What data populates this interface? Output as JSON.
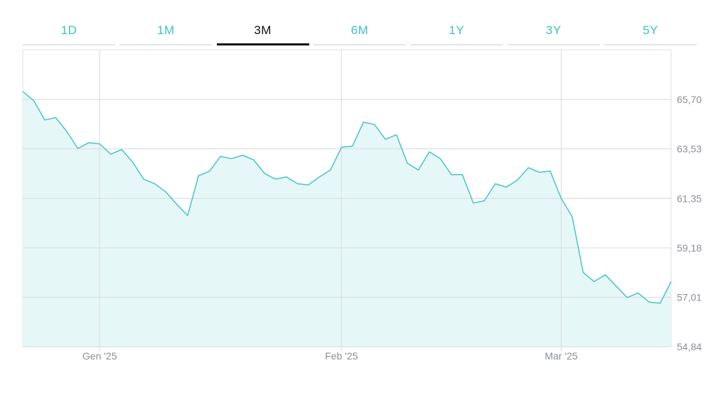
{
  "tabs": [
    {
      "label": "1D",
      "active": false
    },
    {
      "label": "1M",
      "active": false
    },
    {
      "label": "3M",
      "active": true
    },
    {
      "label": "6M",
      "active": false
    },
    {
      "label": "1Y",
      "active": false
    },
    {
      "label": "3Y",
      "active": false
    },
    {
      "label": "5Y",
      "active": false
    }
  ],
  "colors": {
    "line": "#4cc3c3",
    "fill": "#e6f7f7",
    "grid": "#dcdfe3",
    "tab_active": "#111111",
    "tab_inactive": "#3fc1c1"
  },
  "chart_data": {
    "type": "area",
    "y_ticks": [
      "65,70",
      "63,53",
      "61,35",
      "59,18",
      "57,01",
      "54,84"
    ],
    "y_tick_values": [
      65.7,
      63.53,
      61.35,
      59.18,
      57.01,
      54.84
    ],
    "ylim": [
      54.84,
      67.3
    ],
    "x_ticks": [
      {
        "label": "Gen '25",
        "index": 7
      },
      {
        "label": "Feb '25",
        "index": 29
      },
      {
        "label": "Mar '25",
        "index": 49
      }
    ],
    "grid": true,
    "values": [
      66.05,
      65.65,
      64.8,
      64.9,
      64.3,
      63.55,
      63.8,
      63.75,
      63.3,
      63.5,
      62.95,
      62.2,
      62.0,
      61.65,
      61.1,
      60.6,
      62.35,
      62.55,
      63.2,
      63.1,
      63.25,
      63.05,
      62.45,
      62.2,
      62.3,
      62.0,
      61.95,
      62.3,
      62.6,
      63.6,
      63.65,
      64.7,
      64.6,
      63.95,
      64.15,
      62.9,
      62.6,
      63.4,
      63.1,
      62.4,
      62.4,
      61.15,
      61.25,
      62.0,
      61.85,
      62.15,
      62.7,
      62.5,
      62.55,
      61.35,
      60.55,
      58.1,
      57.7,
      58.0,
      57.5,
      57.0,
      57.2,
      56.8,
      56.75,
      57.7
    ]
  }
}
